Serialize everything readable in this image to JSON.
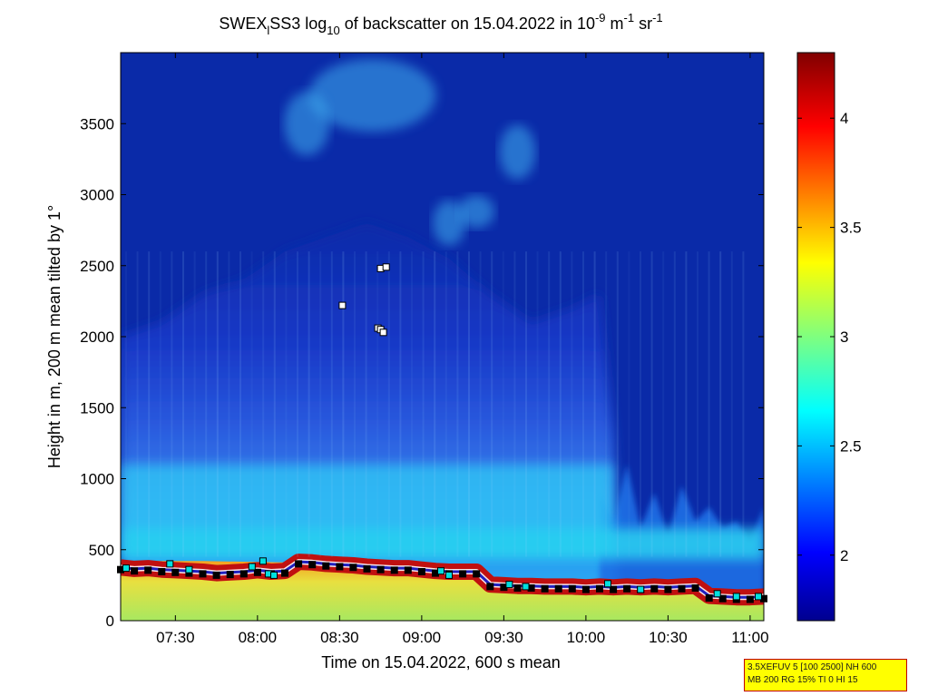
{
  "chart_data": {
    "type": "heatmap",
    "title": {
      "prefix": "SWEX",
      "sub1": "l",
      "mid": "SS3 log",
      "sub2": "10",
      "rest": " of backscatter on 15.04.2022 in 10",
      "sup1": "-9",
      "unit1": " m",
      "sup2": "-1",
      "unit2": " sr",
      "sup3": "-1"
    },
    "xlabel": "Time on 15.04.2022, 600 s mean",
    "ylabel": "Height in m, 200 m mean tilted by 1°",
    "x_range": [
      "07:10",
      "11:05"
    ],
    "ylim": [
      0,
      4000
    ],
    "x_ticks": [
      "07:30",
      "08:00",
      "08:30",
      "09:00",
      "09:30",
      "10:00",
      "10:30",
      "11:00"
    ],
    "y_ticks": [
      0,
      500,
      1000,
      1500,
      2000,
      2500,
      3000,
      3500
    ],
    "colorbar": {
      "min": 1.7,
      "max": 4.3,
      "ticks": [
        2,
        2.5,
        3,
        3.5,
        4
      ],
      "colormap": "jet"
    },
    "series": [
      {
        "name": "",
        "marker": "square",
        "color": "#000000",
        "points": [
          {
            "t": "07:10",
            "h": 360
          },
          {
            "t": "07:15",
            "h": 350
          },
          {
            "t": "07:20",
            "h": 355
          },
          {
            "t": "07:25",
            "h": 345
          },
          {
            "t": "07:30",
            "h": 340
          },
          {
            "t": "07:35",
            "h": 335
          },
          {
            "t": "07:40",
            "h": 330
          },
          {
            "t": "07:45",
            "h": 320
          },
          {
            "t": "07:50",
            "h": 325
          },
          {
            "t": "07:55",
            "h": 330
          },
          {
            "t": "08:00",
            "h": 340
          },
          {
            "t": "08:05",
            "h": 330
          },
          {
            "t": "08:10",
            "h": 335
          },
          {
            "t": "08:15",
            "h": 400
          },
          {
            "t": "08:20",
            "h": 395
          },
          {
            "t": "08:25",
            "h": 385
          },
          {
            "t": "08:30",
            "h": 380
          },
          {
            "t": "08:35",
            "h": 375
          },
          {
            "t": "08:40",
            "h": 365
          },
          {
            "t": "08:45",
            "h": 360
          },
          {
            "t": "08:50",
            "h": 355
          },
          {
            "t": "08:55",
            "h": 355
          },
          {
            "t": "09:00",
            "h": 345
          },
          {
            "t": "09:05",
            "h": 335
          },
          {
            "t": "09:10",
            "h": 330
          },
          {
            "t": "09:15",
            "h": 330
          },
          {
            "t": "09:20",
            "h": 330
          },
          {
            "t": "09:25",
            "h": 240
          },
          {
            "t": "09:30",
            "h": 235
          },
          {
            "t": "09:35",
            "h": 230
          },
          {
            "t": "09:40",
            "h": 230
          },
          {
            "t": "09:45",
            "h": 225
          },
          {
            "t": "09:50",
            "h": 225
          },
          {
            "t": "09:55",
            "h": 225
          },
          {
            "t": "10:00",
            "h": 220
          },
          {
            "t": "10:05",
            "h": 225
          },
          {
            "t": "10:10",
            "h": 220
          },
          {
            "t": "10:15",
            "h": 225
          },
          {
            "t": "10:20",
            "h": 220
          },
          {
            "t": "10:25",
            "h": 225
          },
          {
            "t": "10:30",
            "h": 220
          },
          {
            "t": "10:35",
            "h": 225
          },
          {
            "t": "10:40",
            "h": 230
          },
          {
            "t": "10:45",
            "h": 160
          },
          {
            "t": "10:50",
            "h": 155
          },
          {
            "t": "10:55",
            "h": 150
          },
          {
            "t": "11:00",
            "h": 150
          },
          {
            "t": "11:05",
            "h": 155
          }
        ]
      },
      {
        "name": "",
        "marker": "square",
        "color": "#00e0e0",
        "points": [
          {
            "t": "07:12",
            "h": 370
          },
          {
            "t": "07:28",
            "h": 400
          },
          {
            "t": "07:35",
            "h": 360
          },
          {
            "t": "07:58",
            "h": 380
          },
          {
            "t": "08:02",
            "h": 420
          },
          {
            "t": "08:04",
            "h": 330
          },
          {
            "t": "08:06",
            "h": 320
          },
          {
            "t": "09:07",
            "h": 350
          },
          {
            "t": "09:10",
            "h": 320
          },
          {
            "t": "09:32",
            "h": 255
          },
          {
            "t": "09:38",
            "h": 240
          },
          {
            "t": "10:08",
            "h": 260
          },
          {
            "t": "10:20",
            "h": 220
          },
          {
            "t": "10:48",
            "h": 190
          },
          {
            "t": "10:55",
            "h": 170
          },
          {
            "t": "11:03",
            "h": 170
          }
        ]
      },
      {
        "name": "",
        "marker": "square",
        "color": "#ffffff",
        "points": [
          {
            "t": "08:31",
            "h": 2220
          },
          {
            "t": "08:44",
            "h": 2060
          },
          {
            "t": "08:45",
            "h": 2050
          },
          {
            "t": "08:46",
            "h": 2030
          },
          {
            "t": "08:45",
            "h": 2480
          },
          {
            "t": "08:47",
            "h": 2490
          }
        ]
      }
    ]
  },
  "info_box": {
    "line1": "3.5XEFUV 5 [100 2500] NH 600",
    "line2": "MB 200 RG 15% TI 0 HI 15"
  }
}
